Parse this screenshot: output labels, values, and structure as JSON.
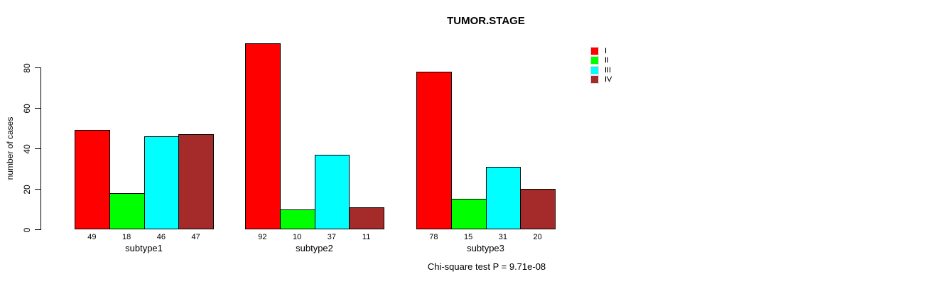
{
  "chart_data": {
    "type": "bar",
    "title": "TUMOR.STAGE",
    "xlabel": "",
    "ylabel": "number of cases",
    "categories": [
      "subtype1",
      "subtype2",
      "subtype3"
    ],
    "series": [
      {
        "name": "I",
        "color": "#FF0000",
        "values": [
          49,
          92,
          78
        ]
      },
      {
        "name": "II",
        "color": "#00FF00",
        "values": [
          18,
          10,
          15
        ]
      },
      {
        "name": "III",
        "color": "#00FFFF",
        "values": [
          46,
          37,
          31
        ]
      },
      {
        "name": "IV",
        "color": "#A52A2A",
        "values": [
          47,
          11,
          20
        ]
      }
    ],
    "bar_value_labels": true,
    "yticks": [
      0,
      20,
      40,
      60,
      80
    ],
    "ylim": [
      0,
      92
    ],
    "grid": false,
    "legend_position": "top-right",
    "annotation": "Chi-square test P = 9.71e-08"
  },
  "colors": {
    "axis": "#000000",
    "background": "#FFFFFF",
    "bar_border": "#000000"
  }
}
